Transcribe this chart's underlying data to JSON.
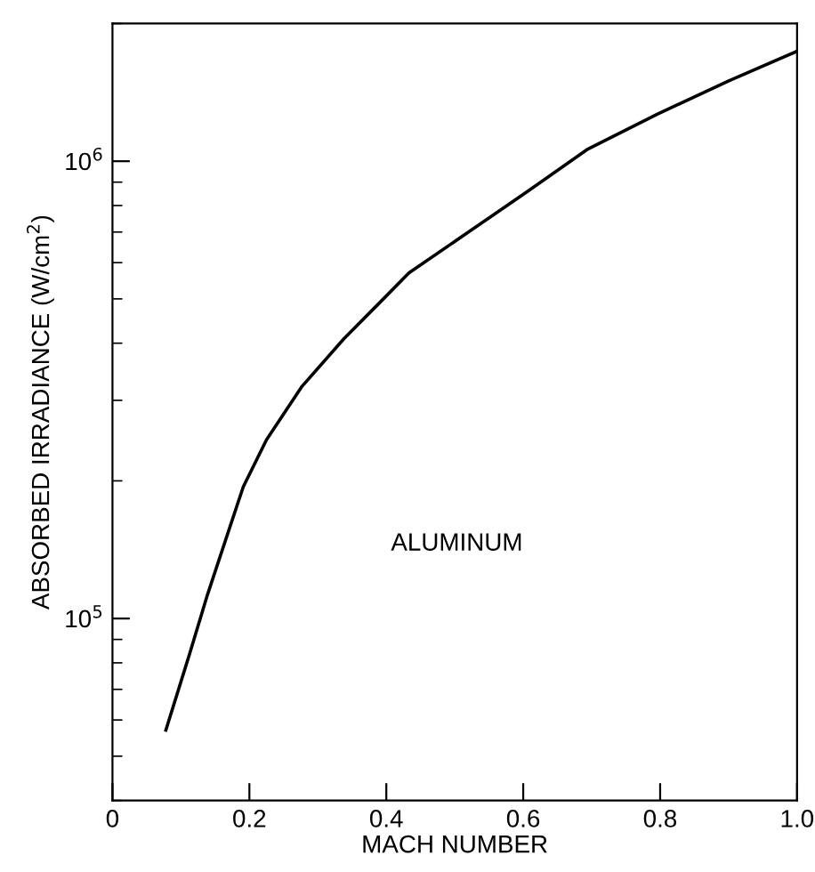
{
  "chart_data": {
    "type": "line",
    "xlabel": "MACH NUMBER",
    "ylabel": "ABSORBED IRRADIANCE (W/cm$^{2}$)",
    "log": "y",
    "xlim": [
      0,
      1.0
    ],
    "ylim": [
      40000,
      2000000
    ],
    "xticks": [
      0,
      0.2,
      0.4,
      0.6,
      0.8,
      {
        "value": 1.0,
        "label": "1.0"
      }
    ],
    "yticks": [
      {
        "value": 100000,
        "label": "10$^{5}$"
      },
      {
        "value": 1000000,
        "label": "10$^{6}$"
      }
    ],
    "grid": false,
    "legend": false,
    "marker": "none",
    "line_style": "solid",
    "series": [
      {
        "name": "ALUMINUM",
        "color": "#000000",
        "x": [
          0.078,
          0.113,
          0.139,
          0.191,
          0.225,
          0.277,
          0.338,
          0.39,
          0.433,
          0.52,
          0.607,
          0.693,
          0.797,
          0.901,
          1.0
        ],
        "values": [
          57000,
          84000,
          113000,
          194000,
          246000,
          322000,
          409000,
          490000,
          570000,
          700000,
          860000,
          1060000,
          1270000,
          1500000,
          1740000
        ]
      }
    ]
  }
}
